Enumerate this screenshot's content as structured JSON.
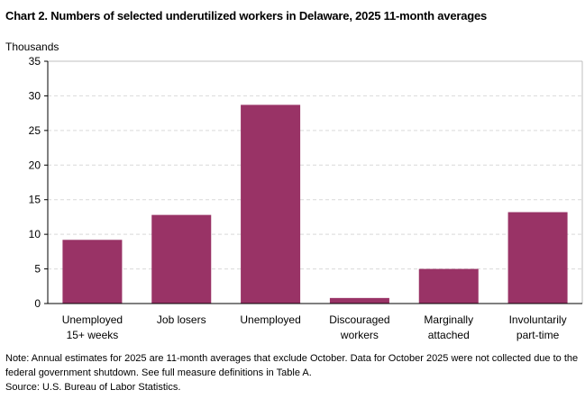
{
  "chart_data": {
    "type": "bar",
    "title": "Chart 2. Numbers of selected underutilized workers in Delaware, 2025 11-month averages",
    "ylabel": "Thousands",
    "xlabel": "",
    "categories": [
      [
        "Unemployed",
        "15+ weeks"
      ],
      [
        "Job losers"
      ],
      [
        "Unemployed"
      ],
      [
        "Discouraged",
        "workers"
      ],
      [
        "Marginally",
        "attached"
      ],
      [
        "Involuntarily",
        "part-time"
      ]
    ],
    "values": [
      9.2,
      12.8,
      28.7,
      0.8,
      5.0,
      13.2
    ],
    "ylim": [
      0,
      35
    ],
    "yticks": [
      0,
      5,
      10,
      15,
      20,
      25,
      30,
      35
    ],
    "grid": true,
    "bar_color": "#993366"
  },
  "note": "Note:  Annual estimates for 2025 are 11-month averages that exclude October. Data for October 2025 were not collected due to the federal government  shutdown. See full measure definitions in Table A.",
  "source": "Source: U.S. Bureau of Labor Statistics."
}
